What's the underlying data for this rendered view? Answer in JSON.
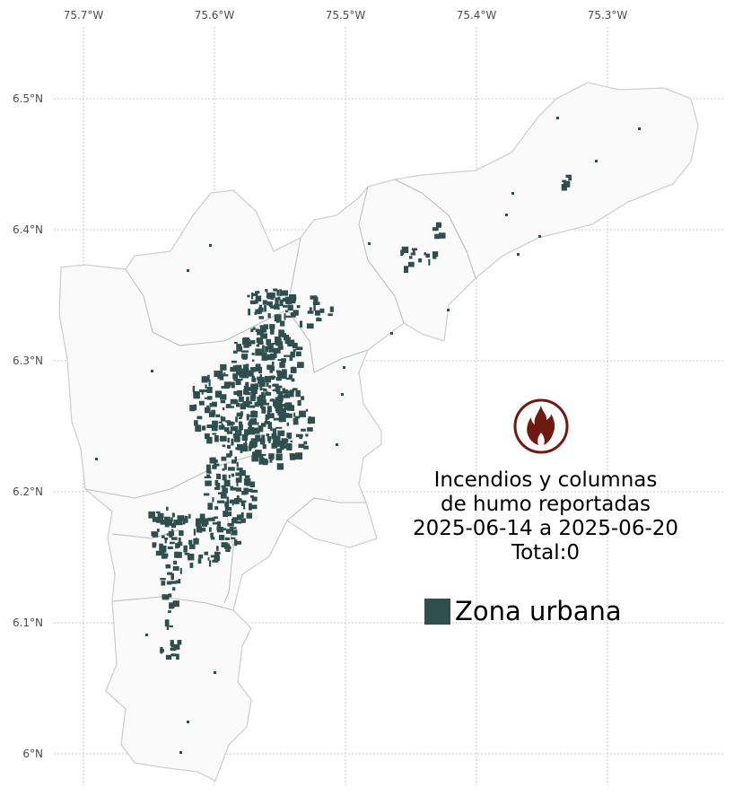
{
  "map": {
    "x_ticks": [
      "75.7°W",
      "75.6°W",
      "75.5°W",
      "75.4°W",
      "75.3°W"
    ],
    "y_ticks": [
      "6.5°N",
      "6.4°N",
      "6.3°N",
      "6.2°N",
      "6.1°N",
      "6°N"
    ],
    "region_fill": "#fafafa",
    "boundary_color": "#c8c8c8",
    "urban_color": "#2f4f4f"
  },
  "info": {
    "icon": "fire-icon",
    "icon_color": "#6e1a10",
    "line1": "Incendios y columnas",
    "line2": "de humo reportadas",
    "line3": "2025-06-14 a 2025-06-20",
    "total": "Total:0"
  },
  "legend": {
    "label": "Zona urbana",
    "color": "#2f4f4f"
  }
}
